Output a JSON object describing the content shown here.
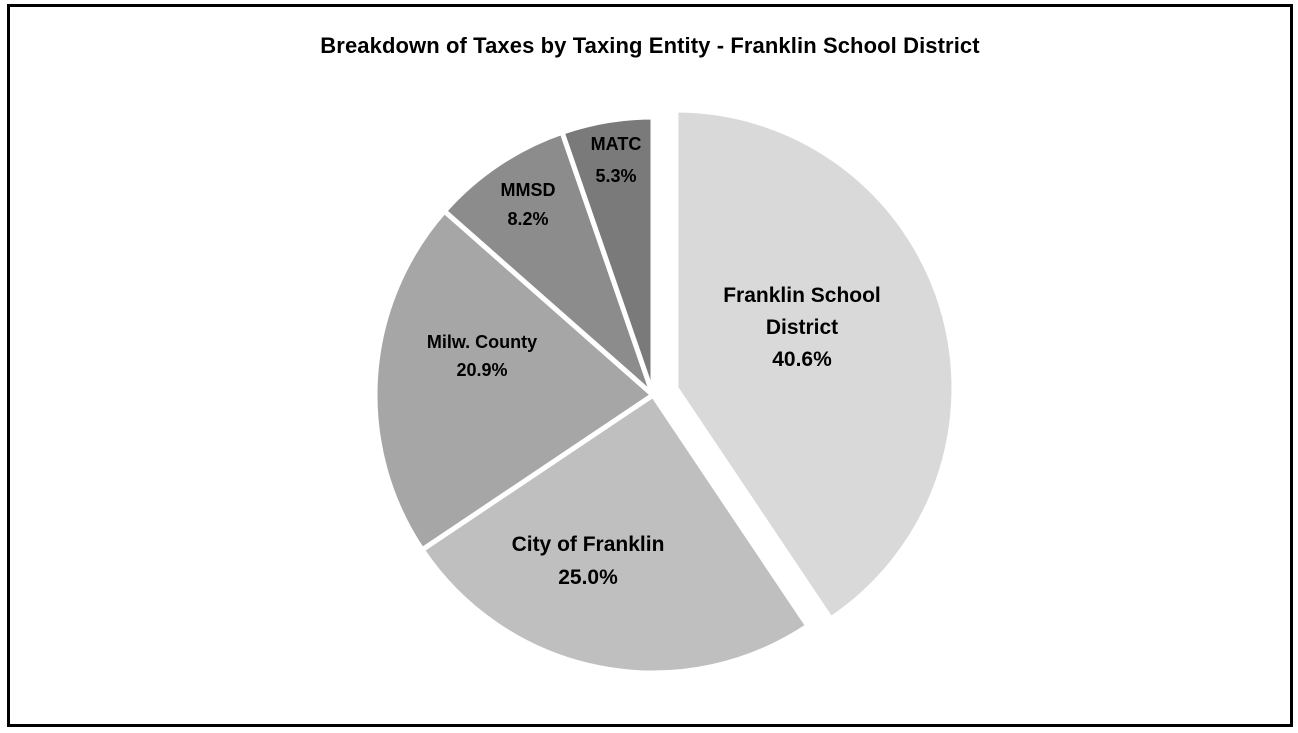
{
  "chart_data": {
    "type": "pie",
    "title": "Breakdown of Taxes by Taxing Entity - Franklin School District",
    "start_angle_deg": 0,
    "direction": "clockwise",
    "exploded": [
      "Franklin School District"
    ],
    "slices": [
      {
        "label_lines": [
          "Franklin School",
          "District"
        ],
        "percent_label": "40.6%",
        "value": 40.6,
        "color": "#d9d9d9"
      },
      {
        "label_lines": [
          "City of Franklin"
        ],
        "percent_label": "25.0%",
        "value": 25.0,
        "color": "#bfbfbf"
      },
      {
        "label_lines": [
          "Milw. County"
        ],
        "percent_label": "20.9%",
        "value": 20.9,
        "color": "#a6a6a6"
      },
      {
        "label_lines": [
          "MMSD"
        ],
        "percent_label": "8.2%",
        "value": 8.2,
        "color": "#8c8c8c"
      },
      {
        "label_lines": [
          "MATC"
        ],
        "percent_label": "5.3%",
        "value": 5.3,
        "color": "#7a7a7a"
      }
    ]
  }
}
